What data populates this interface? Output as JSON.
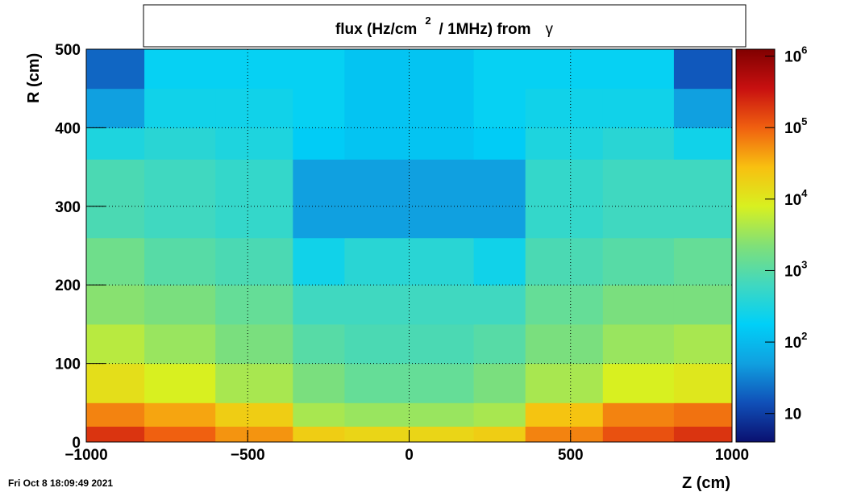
{
  "chart_data": {
    "type": "heatmap",
    "title": [
      "flux (Hz/cm",
      "2",
      "/ 1MHz) from",
      "γ"
    ],
    "x_label": "Z (cm)",
    "y_label": "R (cm)",
    "xlim": [
      -1000,
      1000
    ],
    "ylim": [
      0,
      500
    ],
    "zlim": [
      4,
      1250000
    ],
    "log_z": true,
    "grid": true,
    "xticks": [
      {
        "value": -1000,
        "label": "−1000"
      },
      {
        "value": -500,
        "label": "−500"
      },
      0,
      500,
      1000
    ],
    "yticks": [
      0,
      100,
      200,
      300,
      400,
      500
    ],
    "zticks": [
      10,
      {
        "value": 100,
        "label": "10",
        "exponent": "2"
      },
      {
        "value": 1000,
        "label": "10",
        "exponent": "3"
      },
      {
        "value": 10000,
        "label": "10",
        "exponent": "4"
      },
      {
        "value": 100000,
        "label": "10",
        "exponent": "5"
      },
      {
        "value": 1000000,
        "label": "10",
        "exponent": "6"
      }
    ],
    "palette": [
      "#0a1070",
      "#1050b8",
      "#10a0e0",
      "#00d0f8",
      "#40d8c0",
      "#80e078",
      "#d8f020",
      "#f8c010",
      "#f06010",
      "#c81010",
      "#800000"
    ],
    "xbins": [
      -1000,
      -820,
      -600,
      -360,
      -200,
      0,
      200,
      360,
      600,
      820,
      1000
    ],
    "ybins": [
      0,
      20,
      50,
      100,
      150,
      200,
      260,
      360,
      400,
      450,
      500
    ],
    "z": [
      [
        200000,
        100000,
        50000,
        20000,
        16000,
        16000,
        20000,
        63000,
        126000,
        200000
      ],
      [
        63000,
        40000,
        20000,
        4000,
        3200,
        3200,
        4000,
        25000,
        63000,
        79000
      ],
      [
        12600,
        7900,
        4000,
        2000,
        1300,
        1300,
        2000,
        4000,
        7900,
        10000
      ],
      [
        5000,
        3200,
        2000,
        1000,
        790,
        790,
        1000,
        2000,
        3200,
        4000
      ],
      [
        2500,
        2000,
        1300,
        630,
        630,
        630,
        630,
        1300,
        2000,
        2000
      ],
      [
        1600,
        1000,
        790,
        250,
        400,
        400,
        250,
        790,
        1000,
        1300
      ],
      [
        790,
        630,
        500,
        50,
        50,
        50,
        50,
        500,
        630,
        630
      ],
      [
        320,
        400,
        320,
        160,
        130,
        130,
        160,
        320,
        400,
        250
      ],
      [
        50,
        250,
        250,
        200,
        130,
        130,
        200,
        250,
        250,
        50
      ],
      [
        20,
        200,
        200,
        200,
        130,
        130,
        200,
        200,
        200,
        16
      ]
    ]
  },
  "footer": "Fri Oct  8 18:09:49 2021"
}
